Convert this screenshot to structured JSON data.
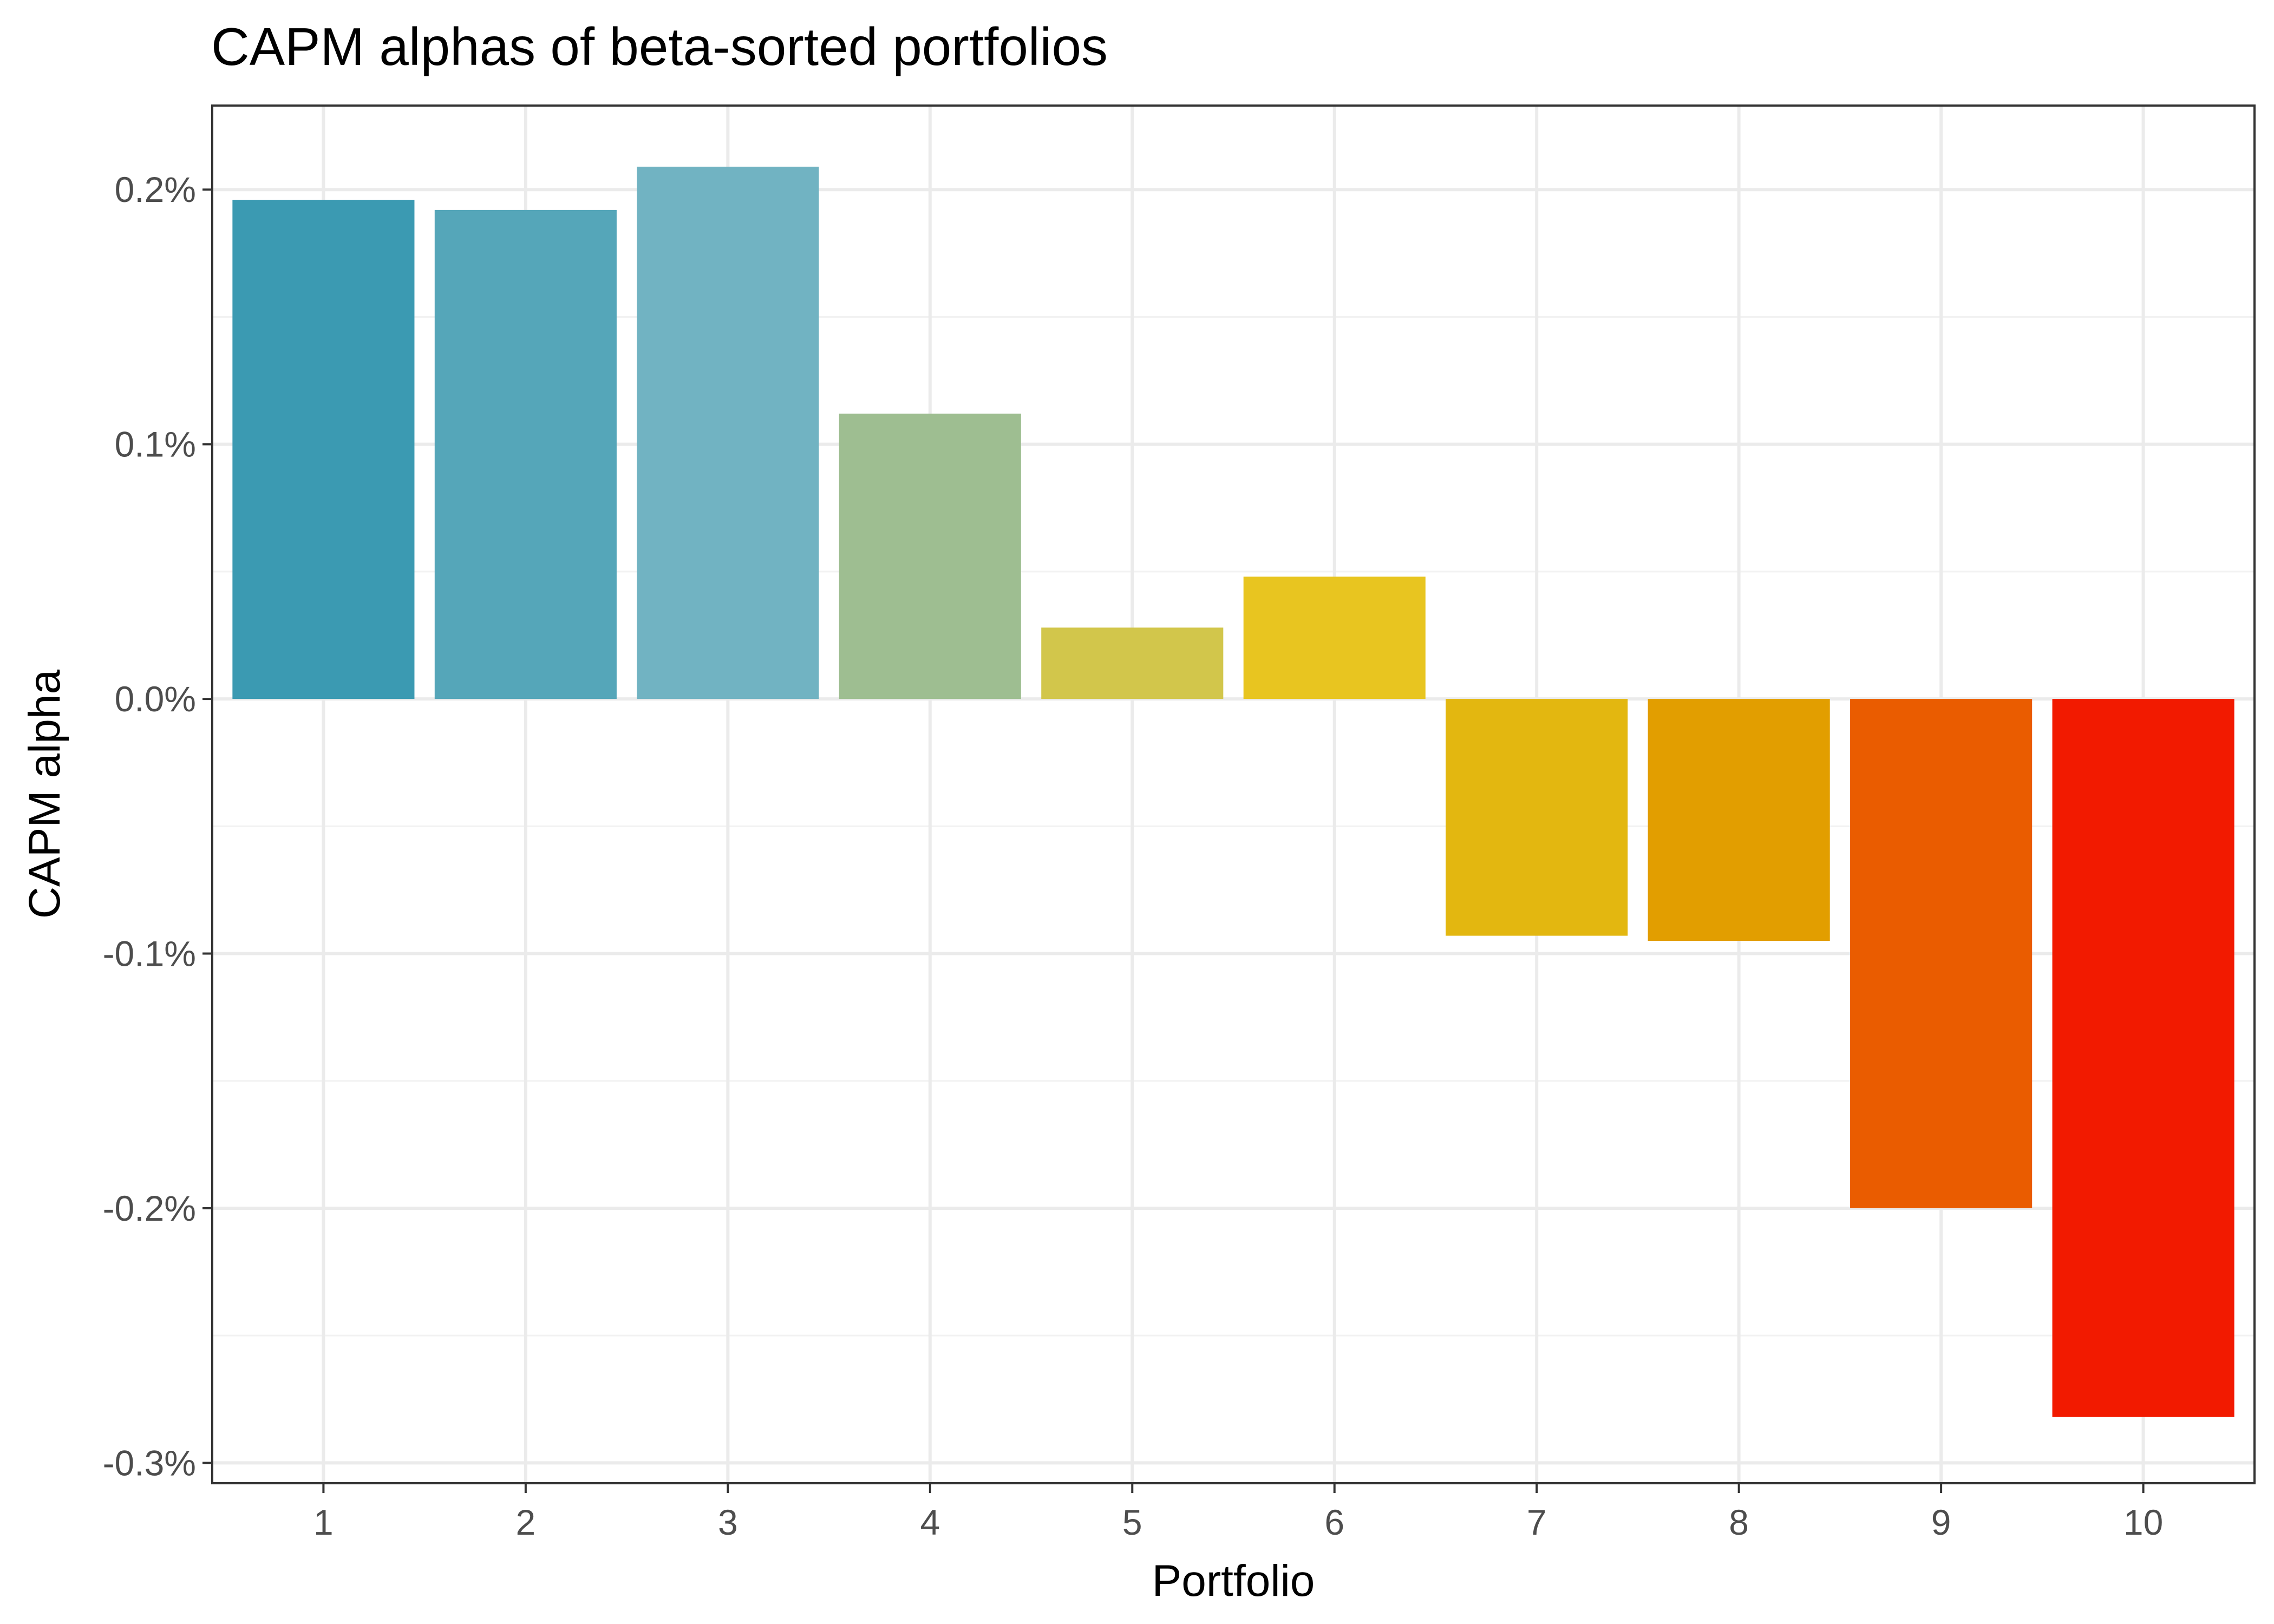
{
  "chart_data": {
    "type": "bar",
    "title": "CAPM alphas of beta-sorted portfolios",
    "xlabel": "Portfolio",
    "ylabel": "CAPM alpha",
    "categories": [
      "1",
      "2",
      "3",
      "4",
      "5",
      "6",
      "7",
      "8",
      "9",
      "10"
    ],
    "values": [
      0.00196,
      0.00192,
      0.00209,
      0.00112,
      0.00028,
      0.00048,
      -0.00093,
      -0.00095,
      -0.002,
      -0.00282
    ],
    "colors": [
      "#3B9AB2",
      "#55A6B9",
      "#71B3C2",
      "#9EBE91",
      "#D2C64B",
      "#E8C520",
      "#E3B710",
      "#E29E00",
      "#EA5C00",
      "#F21A00"
    ],
    "ylim": [
      -0.00308,
      0.00233
    ],
    "y_ticks": [
      -0.003,
      -0.002,
      -0.001,
      0.0,
      0.001,
      0.002
    ],
    "y_tick_labels": [
      "-0.3%",
      "-0.2%",
      "-0.1%",
      "0.0%",
      "0.1%",
      "0.2%"
    ],
    "x_tick_labels": [
      "1",
      "2",
      "3",
      "4",
      "5",
      "6",
      "7",
      "8",
      "9",
      "10"
    ],
    "grid": true,
    "legend": "none"
  }
}
